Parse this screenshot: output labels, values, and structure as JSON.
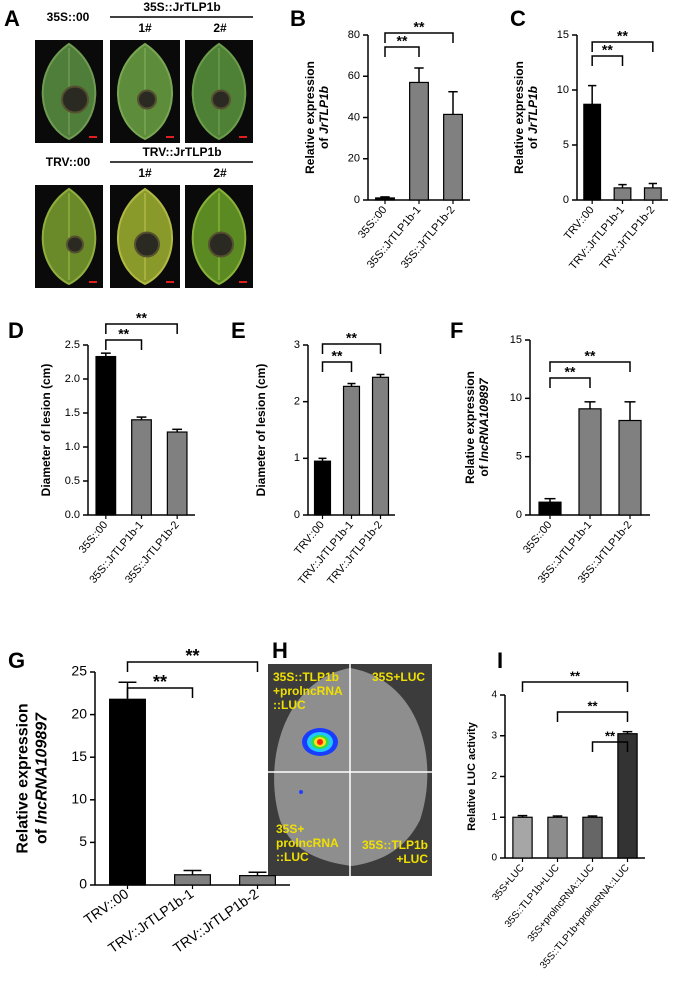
{
  "chart_data": [
    {
      "type": "bar",
      "panel": "B",
      "ylabel": [
        "Relative expression",
        "of",
        "JrTLP1b"
      ],
      "categories": [
        "35S::00",
        "35S::JrTLP1b-1",
        "35S::JrTLP1b-2"
      ],
      "values": [
        1,
        57,
        41.5
      ],
      "errors": [
        0.5,
        7,
        11
      ],
      "colors": [
        "#000000",
        "#808080",
        "#808080"
      ],
      "ylim": [
        0,
        80
      ],
      "yticks": [
        0,
        20,
        40,
        60,
        80
      ],
      "significance": [
        {
          "pair": [
            "35S::00",
            "35S::JrTLP1b-1"
          ],
          "label": "**"
        },
        {
          "pair": [
            "35S::00",
            "35S::JrTLP1b-2"
          ],
          "label": "**"
        }
      ]
    },
    {
      "type": "bar",
      "panel": "C",
      "ylabel": [
        "Relative expression",
        "of",
        "JrTLP1b"
      ],
      "categories": [
        "TRV::00",
        "TRV::JrTLP1b-1",
        "TRV::JrTLP1b-2"
      ],
      "values": [
        8.7,
        1.1,
        1.1
      ],
      "errors": [
        1.7,
        0.3,
        0.4
      ],
      "colors": [
        "#000000",
        "#808080",
        "#808080"
      ],
      "ylim": [
        0,
        15
      ],
      "yticks": [
        0,
        5,
        10,
        15
      ],
      "significance": [
        {
          "pair": [
            "TRV::00",
            "TRV::JrTLP1b-1"
          ],
          "label": "**"
        },
        {
          "pair": [
            "TRV::00",
            "TRV::JrTLP1b-2"
          ],
          "label": "**"
        }
      ]
    },
    {
      "type": "bar",
      "panel": "D",
      "ylabel": [
        "Diameter of lesion (cm)"
      ],
      "categories": [
        "35S::00",
        "35S::JrTLP1b-1",
        "35S::JrTLP1b-2"
      ],
      "values": [
        2.33,
        1.4,
        1.22
      ],
      "errors": [
        0.05,
        0.04,
        0.04
      ],
      "colors": [
        "#000000",
        "#808080",
        "#808080"
      ],
      "ylim": [
        0,
        2.5
      ],
      "yticks": [
        {
          "value": 0,
          "label": "0.0"
        },
        0.5,
        {
          "value": 1,
          "label": "1.0"
        },
        1.5,
        {
          "value": 2,
          "label": "2.0"
        },
        2.5
      ],
      "significance": [
        {
          "pair": [
            "35S::00",
            "35S::JrTLP1b-1"
          ],
          "label": "**"
        },
        {
          "pair": [
            "35S::00",
            "35S::JrTLP1b-2"
          ],
          "label": "**"
        }
      ]
    },
    {
      "type": "bar",
      "panel": "E",
      "ylabel": [
        "Diameter of lesion (cm)"
      ],
      "categories": [
        "TRV::00",
        "TRV::JrTLP1b-1",
        "TRV::JrTLP1b-2"
      ],
      "values": [
        0.95,
        2.27,
        2.43
      ],
      "errors": [
        0.05,
        0.05,
        0.05
      ],
      "colors": [
        "#000000",
        "#808080",
        "#808080"
      ],
      "ylim": [
        0,
        3
      ],
      "yticks": [
        0,
        1,
        2,
        3
      ],
      "significance": [
        {
          "pair": [
            "TRV::00",
            "TRV::JrTLP1b-1"
          ],
          "label": "**"
        },
        {
          "pair": [
            "TRV::00",
            "TRV::JrTLP1b-2"
          ],
          "label": "**"
        }
      ]
    },
    {
      "type": "bar",
      "panel": "F",
      "ylabel": [
        "Relative expression",
        "of",
        "lncRNA109897"
      ],
      "categories": [
        "35S::00",
        "35S::JrTLP1b-1",
        "35S::JrTLP1b-2"
      ],
      "values": [
        1.1,
        9.1,
        8.1
      ],
      "errors": [
        0.3,
        0.6,
        1.6
      ],
      "colors": [
        "#000000",
        "#808080",
        "#808080"
      ],
      "ylim": [
        0,
        15
      ],
      "yticks": [
        0,
        5,
        10,
        15
      ],
      "significance": [
        {
          "pair": [
            "35S::00",
            "35S::JrTLP1b-1"
          ],
          "label": "**"
        },
        {
          "pair": [
            "35S::00",
            "35S::JrTLP1b-2"
          ],
          "label": "**"
        }
      ]
    },
    {
      "type": "bar",
      "panel": "G",
      "ylabel": [
        "Relative expression",
        "of",
        "lncRNA109897"
      ],
      "categories": [
        "TRV::00",
        "TRV::JrTLP1b-1",
        "TRV::JrTLP1b-2"
      ],
      "values": [
        21.8,
        1.2,
        1.1
      ],
      "errors": [
        2,
        0.5,
        0.4
      ],
      "colors": [
        "#000000",
        "#808080",
        "#808080"
      ],
      "ylim": [
        0,
        25
      ],
      "yticks": [
        0,
        5,
        10,
        15,
        20,
        25
      ],
      "significance": [
        {
          "pair": [
            "TRV::00",
            "TRV::JrTLP1b-1"
          ],
          "label": "**"
        },
        {
          "pair": [
            "TRV::00",
            "TRV::JrTLP1b-2"
          ],
          "label": "**"
        }
      ]
    },
    {
      "type": "bar",
      "panel": "I",
      "ylabel": [
        "Relative LUC activity"
      ],
      "categories": [
        "35S+LUC",
        "35S::TLP1b+LUC",
        "35S+prolncRNA::LUC",
        "35S::TLP1b+prolncRNA::LUC"
      ],
      "values": [
        1,
        1,
        1,
        3.05
      ],
      "errors": [
        0.04,
        0.03,
        0.03,
        0.05
      ],
      "colors": [
        "#a6a6a6",
        "#8c8c8c",
        "#666666",
        "#333333"
      ],
      "ylim": [
        0,
        4
      ],
      "yticks": [
        0,
        1,
        2,
        3,
        4
      ],
      "significance": [
        {
          "pair": [
            "35S+prolncRNA::LUC",
            "35S::TLP1b+prolncRNA::LUC"
          ],
          "label": "**"
        },
        {
          "pair": [
            "35S::TLP1b+LUC",
            "35S::TLP1b+prolncRNA::LUC"
          ],
          "label": "**"
        },
        {
          "pair": [
            "35S+LUC",
            "35S::TLP1b+prolncRNA::LUC"
          ],
          "label": "**"
        }
      ]
    }
  ],
  "photo_panels": {
    "a": {
      "panel": "A",
      "rows": [
        {
          "control": "35S::00",
          "construct": "35S::JrTLP1b",
          "lines": [
            "1#",
            "2#"
          ]
        },
        {
          "control": "TRV::00",
          "construct": "TRV::JrTLP1b",
          "lines": [
            "1#",
            "2#"
          ]
        }
      ]
    },
    "h": {
      "panel": "H",
      "quadrants": [
        [
          "35S::TLP1b",
          "+prolncRNA",
          "::LUC"
        ],
        [
          "35S+LUC"
        ],
        [
          "35S+",
          "prolncRNA",
          "::LUC"
        ],
        [
          "35S::TLP1b",
          "+LUC"
        ]
      ]
    }
  }
}
